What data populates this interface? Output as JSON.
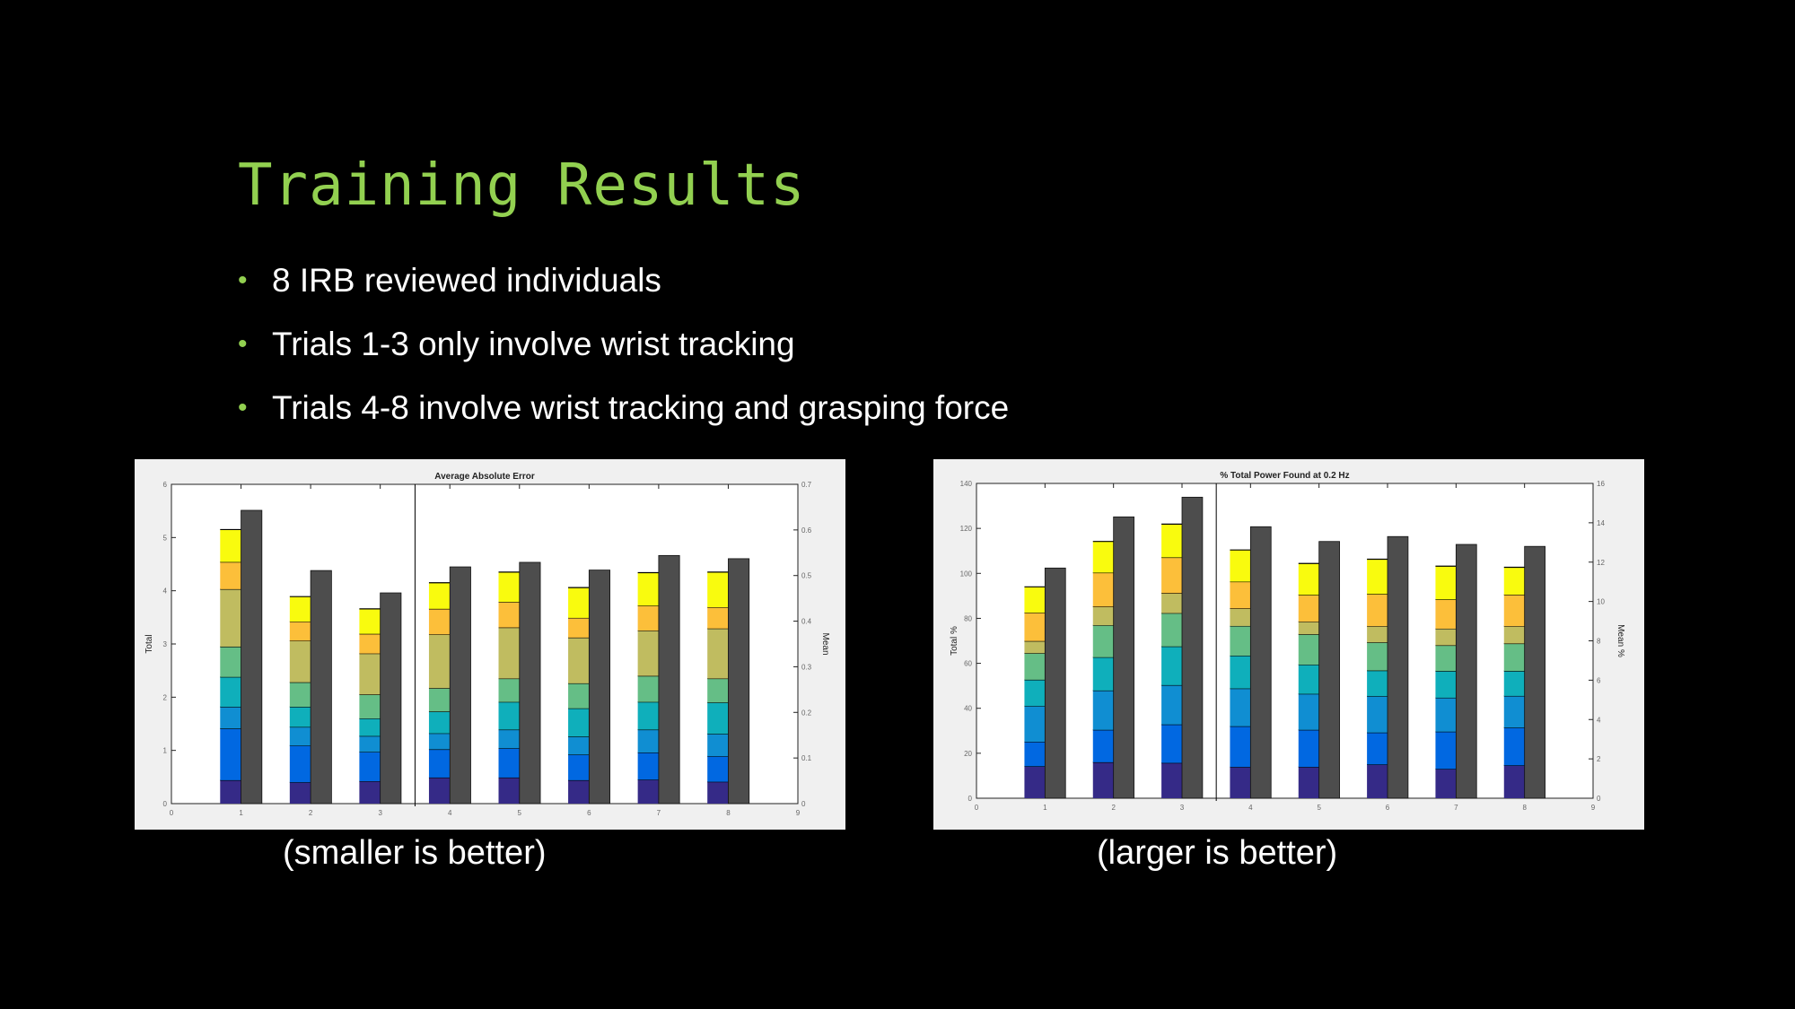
{
  "slide": {
    "title": "Training Results",
    "bullets": [
      "8 IRB reviewed individuals",
      "Trials 1-3 only involve wrist tracking",
      "Trials 4-8 involve wrist tracking and grasping force"
    ],
    "captions": [
      "(smaller is better)",
      "(larger is better)"
    ],
    "accent_color": "#92d050"
  },
  "chart_data": [
    {
      "type": "bar",
      "stacked": true,
      "title": "Average Absolute Error",
      "ylabel": "Total",
      "y2label": "Mean",
      "x": [
        1,
        2,
        3,
        4,
        5,
        6,
        7,
        8
      ],
      "xlim": [
        0,
        9
      ],
      "ylim": [
        0,
        6
      ],
      "y2lim": [
        0,
        0.7
      ],
      "xticks": [
        0,
        1,
        2,
        3,
        4,
        5,
        6,
        7,
        8,
        9
      ],
      "yticks": [
        0,
        1,
        2,
        3,
        4,
        5,
        6
      ],
      "y2ticks": [
        0,
        0.1,
        0.2,
        0.3,
        0.4,
        0.5,
        0.6,
        0.7
      ],
      "divider_x": 3.5,
      "segment_colors": [
        "#352a87",
        "#0168e1",
        "#108ed2",
        "#0fafbb",
        "#65be86",
        "#c0bc60",
        "#fcbf3a",
        "#f9fb0e"
      ],
      "stacks": [
        [
          0.44,
          0.97,
          0.41,
          0.56,
          0.57,
          1.08,
          0.51,
          0.61
        ],
        [
          0.4,
          0.69,
          0.35,
          0.38,
          0.46,
          0.78,
          0.36,
          0.47
        ],
        [
          0.42,
          0.55,
          0.3,
          0.33,
          0.45,
          0.77,
          0.37,
          0.47
        ],
        [
          0.49,
          0.53,
          0.3,
          0.41,
          0.44,
          1.01,
          0.48,
          0.49
        ],
        [
          0.49,
          0.55,
          0.35,
          0.52,
          0.44,
          0.96,
          0.48,
          0.56
        ],
        [
          0.44,
          0.48,
          0.34,
          0.53,
          0.47,
          0.86,
          0.37,
          0.57
        ],
        [
          0.45,
          0.51,
          0.43,
          0.52,
          0.49,
          0.85,
          0.47,
          0.62
        ],
        [
          0.41,
          0.48,
          0.42,
          0.59,
          0.45,
          0.94,
          0.4,
          0.66
        ]
      ],
      "mean_values": [
        0.643,
        0.511,
        0.462,
        0.519,
        0.529,
        0.512,
        0.544,
        0.537
      ],
      "mean_color": "#4d4d4d"
    },
    {
      "type": "bar",
      "stacked": true,
      "title": "% Total Power Found at 0.2 Hz",
      "ylabel": "Total %",
      "y2label": "Mean %",
      "x": [
        1,
        2,
        3,
        4,
        5,
        6,
        7,
        8
      ],
      "xlim": [
        0,
        9
      ],
      "ylim": [
        0,
        140
      ],
      "y2lim": [
        0,
        16
      ],
      "xticks": [
        0,
        1,
        2,
        3,
        4,
        5,
        6,
        7,
        8,
        9
      ],
      "yticks": [
        0,
        20,
        40,
        60,
        80,
        100,
        120,
        140
      ],
      "y2ticks": [
        0,
        2,
        4,
        6,
        8,
        10,
        12,
        14,
        16
      ],
      "divider_x": 3.5,
      "segment_colors": [
        "#352a87",
        "#0168e1",
        "#108ed2",
        "#0fafbb",
        "#65be86",
        "#c0bc60",
        "#fcbf3a",
        "#f9fb0e"
      ],
      "stacks": [
        [
          14.2,
          10.9,
          15.9,
          11.7,
          11.8,
          5.4,
          12.6,
          11.5
        ],
        [
          16.0,
          14.4,
          17.5,
          14.8,
          14.2,
          8.3,
          15.1,
          13.9
        ],
        [
          15.7,
          17.1,
          17.5,
          17.2,
          14.8,
          8.9,
          15.9,
          14.8
        ],
        [
          13.9,
          18.1,
          16.8,
          14.6,
          13.2,
          7.8,
          11.9,
          14.1
        ],
        [
          13.9,
          16.5,
          16.0,
          13.0,
          13.5,
          5.6,
          11.9,
          14.0
        ],
        [
          15.0,
          14.2,
          16.2,
          11.4,
          12.5,
          7.2,
          14.3,
          15.5
        ],
        [
          13.0,
          16.6,
          15.1,
          11.9,
          11.4,
          7.4,
          13.0,
          14.8
        ],
        [
          14.6,
          16.8,
          14.1,
          11.1,
          12.2,
          7.7,
          14.0,
          12.2
        ]
      ],
      "mean_values": [
        11.7,
        14.3,
        15.3,
        13.8,
        13.05,
        13.3,
        12.9,
        12.8
      ],
      "mean_color": "#4d4d4d"
    }
  ]
}
